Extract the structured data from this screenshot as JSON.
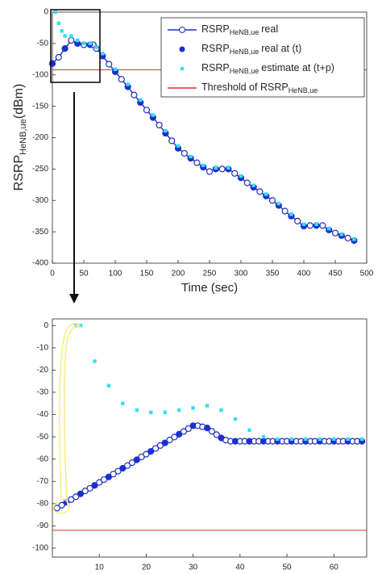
{
  "chart_data": [
    {
      "type": "line",
      "ylabel": "RSRP",
      "ylabel_sub": "HeNB,ue",
      "ylabel_unit": "(dBm)",
      "xlabel": "Time (sec)",
      "xlim": [
        0,
        500
      ],
      "xticks": [
        0,
        50,
        100,
        150,
        200,
        250,
        300,
        350,
        400,
        450,
        500
      ],
      "ylim": [
        -400,
        0
      ],
      "yticks": [
        -400,
        -350,
        -300,
        -250,
        -200,
        -150,
        -100,
        -50,
        0
      ],
      "legend": "upper right",
      "series": [
        {
          "name": "RSRP",
          "name_sub": "HeNB,ue",
          "name_suffix": "real",
          "color": "#1f2fbf",
          "marker": "open-circle",
          "line": true,
          "x": [
            0,
            10,
            20,
            30,
            40,
            50,
            60,
            65,
            70,
            80,
            90,
            100,
            110,
            120,
            130,
            140,
            150,
            160,
            170,
            180,
            190,
            200,
            210,
            220,
            230,
            240,
            250,
            260,
            270,
            280,
            290,
            300,
            310,
            320,
            330,
            340,
            350,
            360,
            370,
            380,
            390,
            400,
            410,
            420,
            430,
            440,
            450,
            460,
            470,
            480
          ],
          "values": [
            -82,
            -72,
            -58,
            -45,
            -50,
            -52,
            -52,
            -52,
            -58,
            -70,
            -83,
            -95,
            -107,
            -119,
            -132,
            -144,
            -156,
            -168,
            -180,
            -193,
            -205,
            -217,
            -225,
            -233,
            -240,
            -247,
            -254,
            -250,
            -250,
            -250,
            -257,
            -264,
            -272,
            -279,
            -286,
            -293,
            -300,
            -308,
            -317,
            -325,
            -333,
            -341,
            -340,
            -340,
            -340,
            -347,
            -352,
            -356,
            -360,
            -364
          ]
        },
        {
          "name": "RSRP",
          "name_sub": "HeNB,ue",
          "name_suffix": "real at (t)",
          "color": "#1a2fd6",
          "marker": "dot",
          "line": false,
          "x": [
            0,
            20,
            40,
            60,
            80,
            100,
            120,
            140,
            160,
            180,
            200,
            220,
            240,
            260,
            280,
            300,
            320,
            340,
            360,
            380,
            400,
            420,
            440,
            460,
            480
          ],
          "values": [
            -82,
            -58,
            -50,
            -52,
            -70,
            -95,
            -119,
            -144,
            -168,
            -193,
            -217,
            -233,
            -247,
            -250,
            -250,
            -264,
            -279,
            -293,
            -308,
            -325,
            -341,
            -340,
            -347,
            -356,
            -364
          ]
        },
        {
          "name": "RSRP",
          "name_sub": "HeNB,ue",
          "name_suffix": "estimate at (t+p)",
          "color": "#33e0f0",
          "marker": "square",
          "line": false,
          "x": [
            5,
            10,
            15,
            20,
            30,
            40,
            50,
            60,
            70,
            80,
            100,
            120,
            140,
            160,
            180,
            200,
            220,
            240,
            260,
            280,
            300,
            320,
            340,
            360,
            380,
            400,
            420,
            440,
            460,
            480
          ],
          "values": [
            0,
            -18,
            -30,
            -38,
            -38,
            -45,
            -50,
            -50,
            -56,
            -66,
            -91,
            -115,
            -140,
            -164,
            -189,
            -213,
            -230,
            -244,
            -248,
            -248,
            -261,
            -276,
            -290,
            -305,
            -322,
            -338,
            -338,
            -345,
            -354,
            -362
          ]
        }
      ],
      "threshold": {
        "name": "Threshold of RSRP",
        "name_sub": "HeNB,ue",
        "value": -92,
        "color": "#e03030"
      }
    },
    {
      "type": "line",
      "xlim": [
        0,
        67
      ],
      "xticks": [
        10,
        20,
        30,
        40,
        50,
        60
      ],
      "ylim": [
        -104,
        3
      ],
      "yticks": [
        -100,
        -90,
        -80,
        -70,
        -60,
        -50,
        -40,
        -30,
        -20,
        -10,
        0
      ],
      "series": [
        {
          "color": "#1f2fbf",
          "marker": "open-circle",
          "line": true,
          "x": [
            1,
            2,
            3,
            4,
            5,
            6,
            7,
            8,
            9,
            10,
            11,
            12,
            13,
            14,
            15,
            16,
            17,
            18,
            19,
            20,
            21,
            22,
            23,
            24,
            25,
            26,
            27,
            28,
            29,
            30,
            31,
            32,
            33,
            34,
            35,
            36,
            37,
            38,
            39,
            40,
            41,
            42,
            43,
            44,
            45,
            46,
            47,
            48,
            49,
            50,
            51,
            52,
            53,
            54,
            55,
            56,
            57,
            58,
            59,
            60,
            61,
            62,
            63,
            64,
            65,
            66
          ],
          "values": [
            -82,
            -80.7,
            -79.4,
            -78.2,
            -76.9,
            -75.6,
            -74.3,
            -73.1,
            -71.8,
            -70.5,
            -69.2,
            -68,
            -66.7,
            -65.4,
            -64.1,
            -62.9,
            -61.6,
            -60.3,
            -59,
            -57.8,
            -56.5,
            -55.2,
            -53.9,
            -52.7,
            -51.4,
            -50.1,
            -48.8,
            -47.6,
            -46.3,
            -45,
            -45,
            -45.5,
            -46,
            -47.5,
            -49,
            -50.5,
            -51.5,
            -52,
            -52,
            -52,
            -52,
            -52,
            -52,
            -52,
            -52,
            -52,
            -52,
            -52,
            -52,
            -52,
            -52,
            -52,
            -52,
            -52,
            -52,
            -52,
            -52,
            -52,
            -52,
            -52,
            -52,
            -52,
            -52,
            -52,
            -52,
            -52
          ]
        },
        {
          "color": "#1a2fd6",
          "marker": "dot",
          "line": false,
          "x": [
            3,
            6,
            9,
            12,
            15,
            18,
            21,
            24,
            27,
            30,
            33,
            36,
            39,
            42,
            45,
            48,
            51,
            54,
            57,
            60,
            63,
            66
          ],
          "values": [
            -79.4,
            -75.6,
            -71.8,
            -68,
            -64.1,
            -60.3,
            -56.5,
            -52.7,
            -48.8,
            -45,
            -46,
            -50.5,
            -52,
            -52,
            -52,
            -52,
            -52,
            -52,
            -52,
            -52,
            -52,
            -52
          ]
        },
        {
          "color": "#33e0f0",
          "marker": "square",
          "line": false,
          "x": [
            5,
            6,
            9,
            12,
            15,
            18,
            21,
            24,
            27,
            30,
            33,
            36,
            39,
            42,
            45,
            48,
            51,
            54,
            57,
            60,
            63,
            66
          ],
          "values": [
            0,
            0,
            -16,
            -27,
            -35,
            -38,
            -39,
            -39,
            -38,
            -37,
            -36,
            -38,
            -42,
            -47,
            -50,
            -51,
            -51,
            -51,
            -51,
            -51,
            -51,
            -51
          ]
        }
      ],
      "threshold": {
        "value": -92,
        "color": "#e03030"
      }
    }
  ]
}
